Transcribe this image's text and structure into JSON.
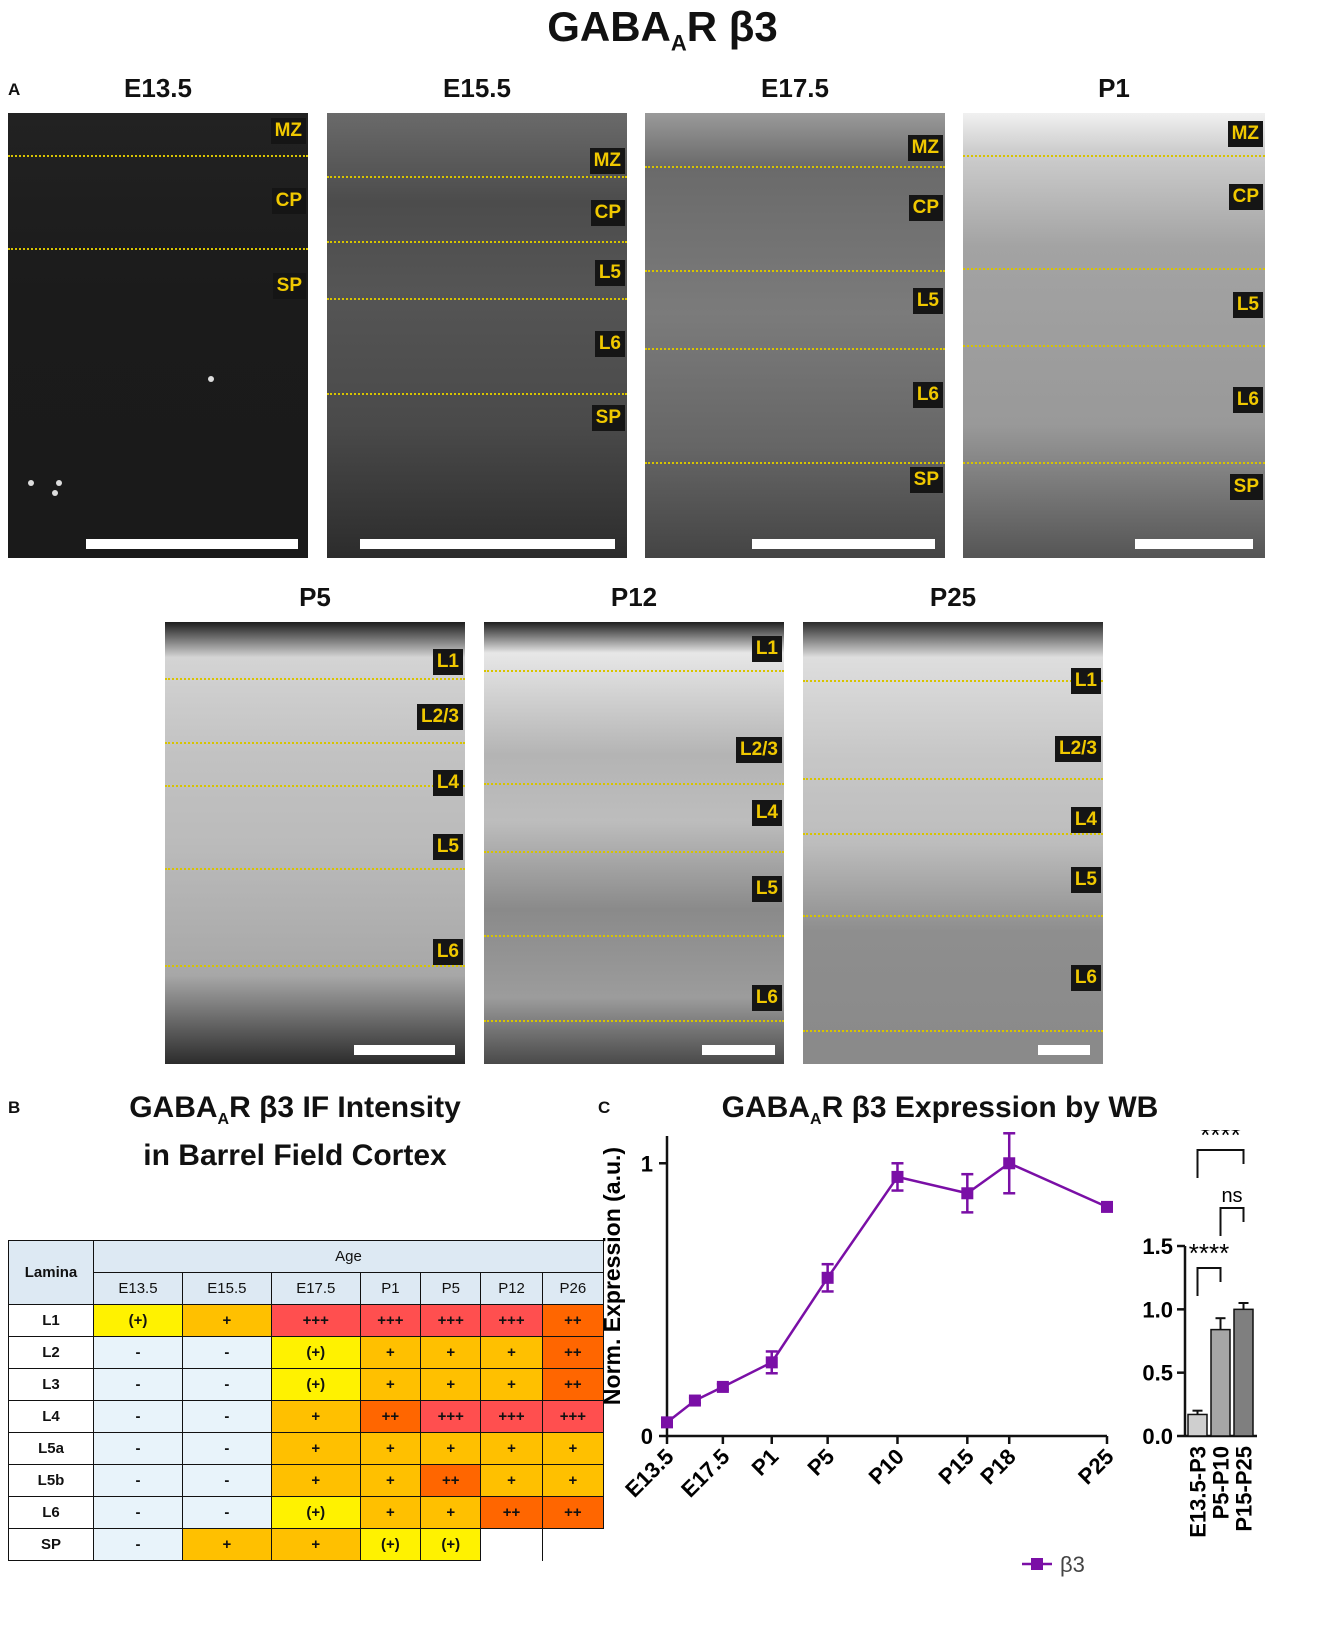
{
  "figure": {
    "title_main": "GABA",
    "title_sub": "A",
    "title_rest": "R β3"
  },
  "panel_a": {
    "letter": "A",
    "images": [
      {
        "title": "E13.5",
        "zones": [
          "MZ",
          "CP",
          "SP"
        ]
      },
      {
        "title": "E15.5",
        "zones": [
          "MZ",
          "CP",
          "L5",
          "L6",
          "SP"
        ]
      },
      {
        "title": "E17.5",
        "zones": [
          "MZ",
          "CP",
          "L5",
          "L6",
          "SP"
        ]
      },
      {
        "title": "P1",
        "zones": [
          "MZ",
          "CP",
          "L5",
          "L6",
          "SP"
        ]
      },
      {
        "title": "P5",
        "zones": [
          "L1",
          "L2/3",
          "L4",
          "L5",
          "L6"
        ]
      },
      {
        "title": "P12",
        "zones": [
          "L1",
          "L2/3",
          "L4",
          "L5",
          "L6"
        ]
      },
      {
        "title": "P25",
        "zones": [
          "L1",
          "L2/3",
          "L4",
          "L5",
          "L6"
        ]
      }
    ]
  },
  "panel_b": {
    "letter": "B",
    "title_line1_pre": "GABA",
    "title_line1_sub": "A",
    "title_line1_post": "R β3 IF Intensity",
    "title_line2": "in Barrel Field Cortex",
    "table": {
      "row_header": "Lamina",
      "group_header": "Age",
      "columns": [
        "E13.5",
        "E15.5",
        "E17.5",
        "P1",
        "P5",
        "P12",
        "P26"
      ],
      "rows": [
        {
          "label": "L1",
          "cells": [
            "(+)",
            "+",
            "+++",
            "+++",
            "+++",
            "+++",
            "++"
          ]
        },
        {
          "label": "L2",
          "cells": [
            "-",
            "-",
            "(+)",
            "+",
            "+",
            "+",
            "++"
          ]
        },
        {
          "label": "L3",
          "cells": [
            "-",
            "-",
            "(+)",
            "+",
            "+",
            "+",
            "++"
          ]
        },
        {
          "label": "L4",
          "cells": [
            "-",
            "-",
            "+",
            "++",
            "+++",
            "+++",
            "+++"
          ]
        },
        {
          "label": "L5a",
          "cells": [
            "-",
            "-",
            "+",
            "+",
            "+",
            "+",
            "+"
          ]
        },
        {
          "label": "L5b",
          "cells": [
            "-",
            "-",
            "+",
            "+",
            "++",
            "+",
            "+"
          ]
        },
        {
          "label": "L6",
          "cells": [
            "-",
            "-",
            "(+)",
            "+",
            "+",
            "++",
            "++"
          ]
        },
        {
          "label": "SP",
          "cells": [
            "-",
            "+",
            "+",
            "(+)",
            "(+)",
            "",
            ""
          ]
        }
      ],
      "level_colors": {
        "-": "#e8f3fa",
        "(+)": "#fff200",
        "+": "#ffc000",
        "++": "#ff6600",
        "+++": "#ff4f4f",
        "": "#ffffff"
      }
    }
  },
  "panel_c": {
    "letter": "C",
    "title_pre": "GABA",
    "title_sub": "A",
    "title_post": "R β3 Expression by WB",
    "chart_data": [
      {
        "type": "line",
        "ylabel": "Norm. Expression (a.u.)",
        "ylim": [
          0,
          1.1
        ],
        "yticks": [
          0,
          1
        ],
        "x_tick_labels": [
          "E13.5",
          "E17.5",
          "P1",
          "P5",
          "P10",
          "P15",
          "P18",
          "P25"
        ],
        "series": [
          {
            "name": "β3",
            "color": "#7a0fa6",
            "points": [
              {
                "x": "E13.5",
                "y": 0.05,
                "err": 0.01
              },
              {
                "x": "E15.5",
                "y": 0.13,
                "err": 0.01
              },
              {
                "x": "E17.5",
                "y": 0.18,
                "err": 0.01
              },
              {
                "x": "P1",
                "y": 0.27,
                "err": 0.04
              },
              {
                "x": "P5",
                "y": 0.58,
                "err": 0.05
              },
              {
                "x": "P10",
                "y": 0.95,
                "err": 0.05
              },
              {
                "x": "P15",
                "y": 0.89,
                "err": 0.07
              },
              {
                "x": "P18",
                "y": 1.0,
                "err": 0.11
              },
              {
                "x": "P25",
                "y": 0.84,
                "err": 0.01
              }
            ]
          }
        ],
        "legend": "bottom-right"
      },
      {
        "type": "bar",
        "categories": [
          "E13.5-P3",
          "P5-P10",
          "P15-P25"
        ],
        "values": [
          0.17,
          0.84,
          1.0
        ],
        "errors": [
          0.03,
          0.09,
          0.05
        ],
        "colors": [
          "#cfcfcf",
          "#a6a6a6",
          "#7f7f7f"
        ],
        "ylim": [
          0,
          1.5
        ],
        "yticks": [
          "0.0",
          "0.5",
          "1.0",
          "1.5"
        ],
        "significance": [
          {
            "from": "E13.5-P3",
            "to": "P15-P25",
            "label": "****"
          },
          {
            "from": "P5-P10",
            "to": "P15-P25",
            "label": "ns"
          },
          {
            "from": "E13.5-P3",
            "to": "P5-P10",
            "label": "****"
          }
        ]
      }
    ]
  }
}
